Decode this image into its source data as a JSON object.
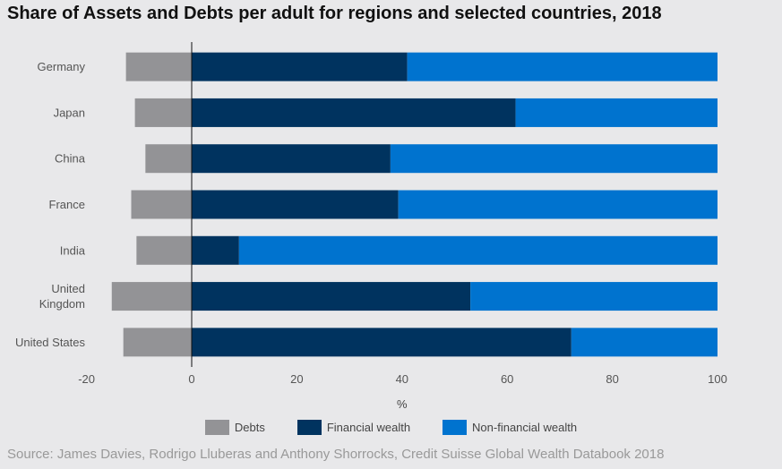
{
  "title": "Share of Assets and Debts per adult for regions and selected countries, 2018",
  "source": "Source: James Davies, Rodrigo Lluberas and Anthony Shorrocks, Credit Suisse Global Wealth Databook 2018",
  "colors": {
    "debts": "#939396",
    "financial": "#00335f",
    "nonfinancial": "#0073cf",
    "background": "#e8e8ea"
  },
  "chart_data": {
    "type": "bar",
    "orientation": "horizontal",
    "stacked": true,
    "categories": [
      "Germany",
      "Japan",
      "China",
      "France",
      "India",
      "United Kingdom",
      "United States"
    ],
    "category_labels": [
      [
        "Germany"
      ],
      [
        "Japan"
      ],
      [
        "China"
      ],
      [
        "France"
      ],
      [
        "India"
      ],
      [
        "United",
        "Kingdom"
      ],
      [
        "United States"
      ]
    ],
    "series": [
      {
        "name": "Debts",
        "values": [
          -12.5,
          -10.8,
          -8.8,
          -11.5,
          -10.5,
          -15.2,
          -13.0
        ]
      },
      {
        "name": "Financial wealth",
        "values": [
          41.0,
          61.6,
          37.8,
          39.3,
          9.0,
          53.0,
          72.2
        ]
      },
      {
        "name": "Non-financial wealth",
        "values": [
          59.0,
          38.4,
          62.2,
          60.7,
          91.0,
          47.0,
          27.8
        ]
      }
    ],
    "xlabel": "%",
    "xlim": [
      -20,
      100
    ],
    "xticks": [
      -20,
      0,
      20,
      40,
      60,
      80,
      100
    ],
    "grid": false,
    "legend": "bottom"
  }
}
